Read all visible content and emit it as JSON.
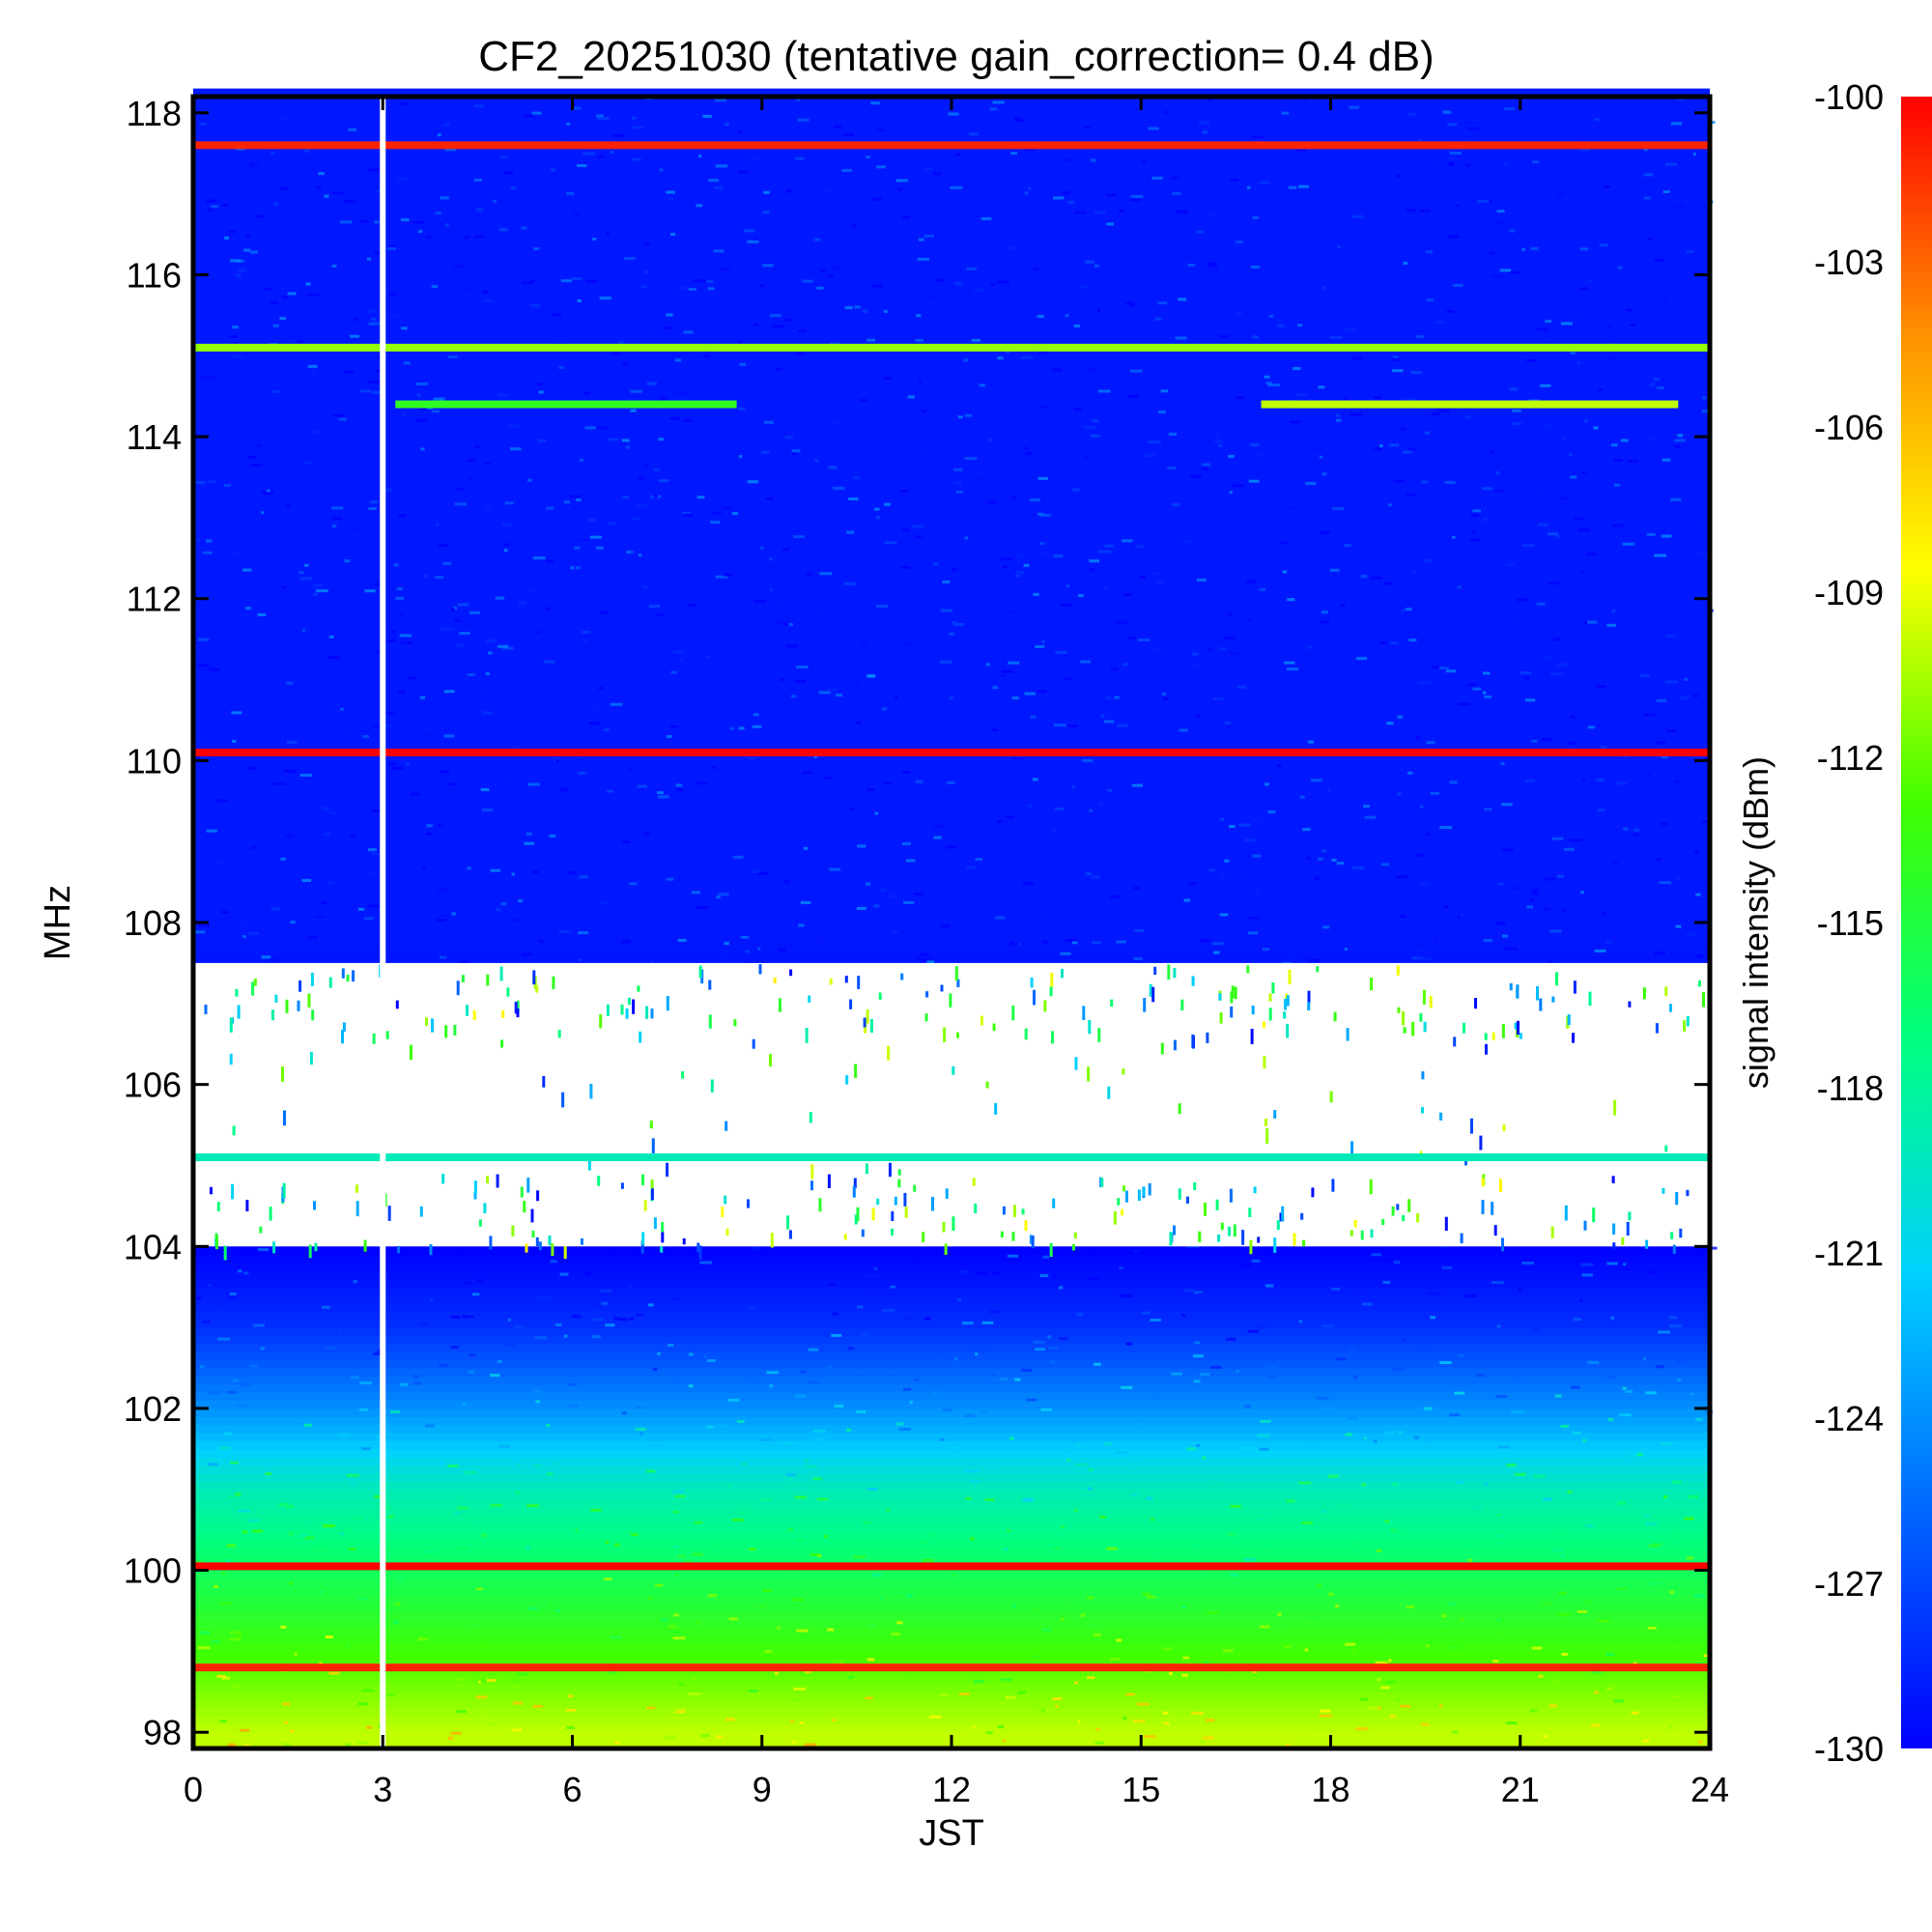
{
  "chart_data": {
    "type": "heatmap",
    "title": "CF2_20251030 (tentative gain_correction=  0.4 dB)",
    "xlabel": "JST",
    "ylabel": "MHz",
    "colorbar_label": "signal intensity (dBm)",
    "xlim": [
      0,
      24
    ],
    "ylim": [
      97.8,
      118.2
    ],
    "x_ticks": [
      0,
      3,
      6,
      9,
      12,
      15,
      18,
      21,
      24
    ],
    "y_ticks": [
      98,
      100,
      102,
      104,
      106,
      108,
      110,
      112,
      114,
      116,
      118
    ],
    "colorbar_range": [
      -130,
      -100
    ],
    "colorbar_ticks": [
      -100,
      -103,
      -106,
      -109,
      -112,
      -115,
      -118,
      -121,
      -124,
      -127,
      -130
    ],
    "colormap": [
      "#0000ff",
      "#0066ff",
      "#00d0ff",
      "#00ff80",
      "#40ff00",
      "#ffff00",
      "#ff9000",
      "#ff0000"
    ],
    "data_gap": {
      "time_jst": 3.0,
      "description": "vertical blank column"
    },
    "persistent_signals": [
      {
        "freq_mhz": 117.6,
        "dbm": -101,
        "start_jst": 0,
        "end_jst": 24
      },
      {
        "freq_mhz": 115.1,
        "dbm": -111,
        "start_jst": 0,
        "end_jst": 24
      },
      {
        "freq_mhz": 114.4,
        "dbm": -114,
        "start_jst": 3.2,
        "end_jst": 8.6
      },
      {
        "freq_mhz": 114.4,
        "dbm": -110,
        "start_jst": 16.9,
        "end_jst": 23.5
      },
      {
        "freq_mhz": 110.1,
        "dbm": -100,
        "start_jst": 0,
        "end_jst": 24
      },
      {
        "freq_mhz": 105.1,
        "dbm": -119,
        "start_jst": 0,
        "end_jst": 24
      },
      {
        "freq_mhz": 100.05,
        "dbm": -100,
        "start_jst": 0,
        "end_jst": 24
      },
      {
        "freq_mhz": 98.8,
        "dbm": -101,
        "start_jst": 0,
        "end_jst": 24
      }
    ],
    "background_levels": [
      {
        "freq_mhz": 98,
        "dbm": -110
      },
      {
        "freq_mhz": 99,
        "dbm": -113
      },
      {
        "freq_mhz": 100,
        "dbm": -116
      },
      {
        "freq_mhz": 101,
        "dbm": -119
      },
      {
        "freq_mhz": 102,
        "dbm": -124
      },
      {
        "freq_mhz": 103,
        "dbm": -128
      },
      {
        "freq_mhz": 104,
        "dbm": -130
      },
      {
        "freq_mhz": 108,
        "dbm": -129
      },
      {
        "freq_mhz": 118,
        "dbm": -129
      }
    ],
    "masked_band_mhz": [
      104.0,
      107.5
    ]
  }
}
